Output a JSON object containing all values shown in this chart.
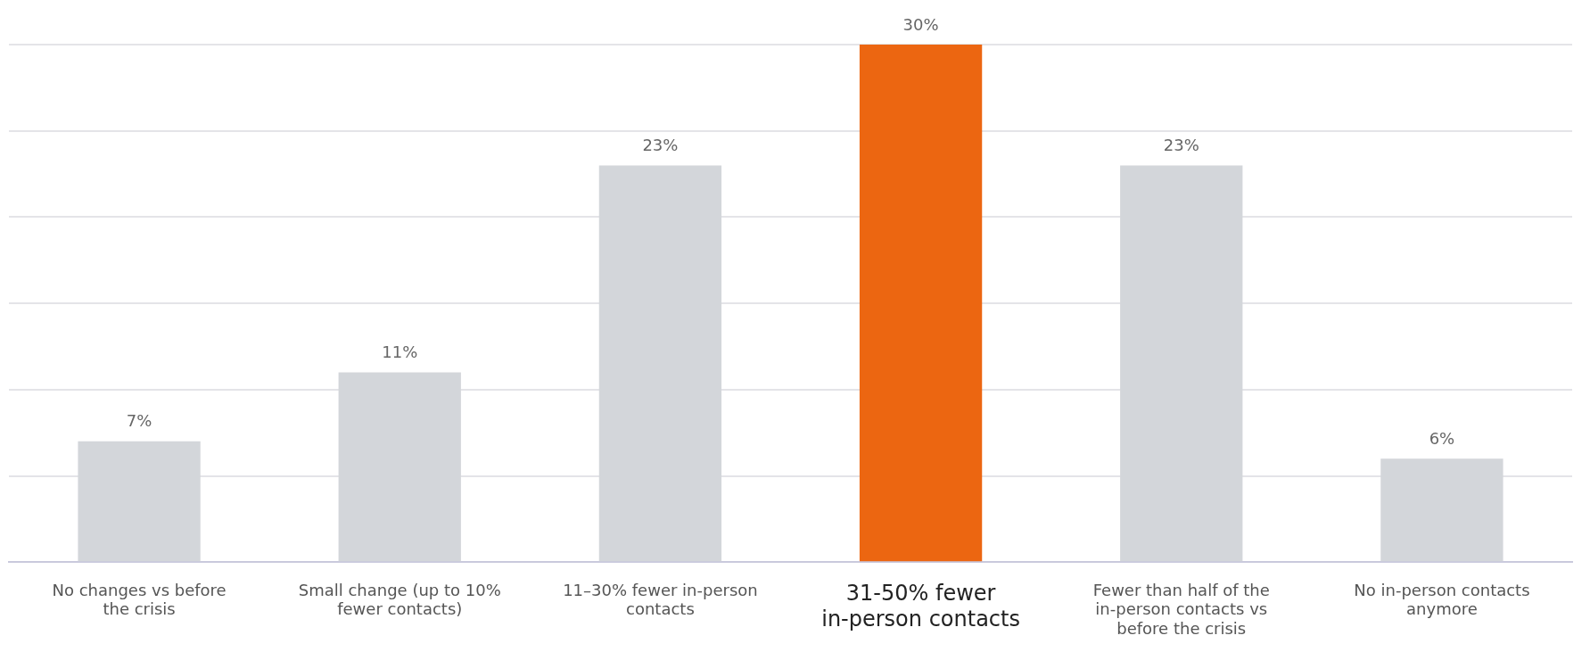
{
  "chart_data": {
    "type": "bar",
    "categories": [
      "No changes vs before the crisis",
      "Small change (up to 10% fewer contacts)",
      "11–30% fewer in-person contacts",
      "31-50% fewer in-person contacts",
      "Fewer than half of the in-person contacts vs before the crisis",
      "No in-person contacts anymore"
    ],
    "values": [
      7,
      11,
      23,
      30,
      23,
      6
    ],
    "value_labels": [
      "7%",
      "11%",
      "23%",
      "30%",
      "23%",
      "6%"
    ],
    "colors": [
      "#d3d6da",
      "#d3d6da",
      "#d3d6da",
      "#ec6611",
      "#d3d6da",
      "#d3d6da"
    ],
    "ylim": [
      0,
      30
    ],
    "yticks": [
      {
        "value": 0,
        "label": null
      },
      {
        "value": 5,
        "label": null
      },
      {
        "value": 10,
        "label": null
      },
      {
        "value": 15,
        "label": null
      },
      {
        "value": 20,
        "label": null
      },
      {
        "value": 25,
        "label": null
      },
      {
        "value": 30,
        "label": null
      }
    ],
    "tick_labels": "x",
    "grid": "y",
    "legend": false
  }
}
